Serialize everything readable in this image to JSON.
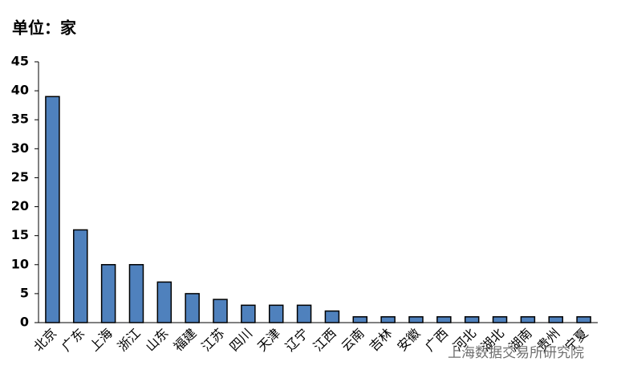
{
  "chart_data": {
    "type": "bar",
    "title": "单位：家",
    "categories": [
      "北京",
      "广东",
      "上海",
      "浙江",
      "山东",
      "福建",
      "江苏",
      "四川",
      "天津",
      "辽宁",
      "江西",
      "云南",
      "吉林",
      "安徽",
      "广西",
      "河北",
      "湖北",
      "湖南",
      "贵州",
      "宁夏"
    ],
    "values": [
      39,
      16,
      10,
      10,
      7,
      5,
      4,
      3,
      3,
      3,
      2,
      1,
      1,
      1,
      1,
      1,
      1,
      1,
      1,
      1
    ],
    "color": "#4f81bd",
    "ylim": [
      0,
      45
    ],
    "yticks": [
      0,
      5,
      10,
      15,
      20,
      25,
      30,
      35,
      40,
      45
    ],
    "grid": false,
    "watermark": "上海数据交易所研究院"
  }
}
